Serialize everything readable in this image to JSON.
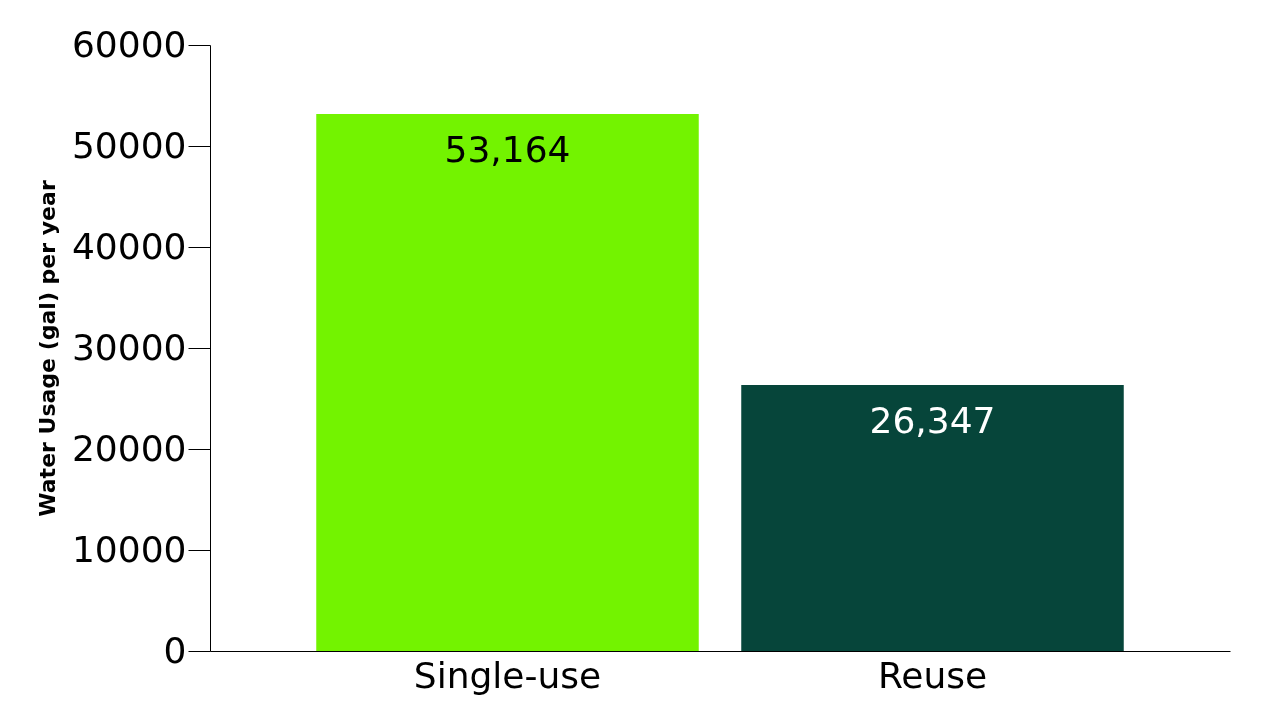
{
  "chart_data": {
    "type": "bar",
    "ylabel": "Water Usage (gal) per year",
    "categories": [
      "Single-use",
      "Reuse"
    ],
    "values": [
      53164,
      26347
    ],
    "colors": [
      "#73f300",
      "#06453a"
    ],
    "value_labels": [
      "53,164",
      "26,347"
    ],
    "ylim": [
      0,
      60000
    ],
    "yticks": [
      0,
      10000,
      20000,
      30000,
      40000,
      50000,
      60000
    ],
    "grid": false
  }
}
